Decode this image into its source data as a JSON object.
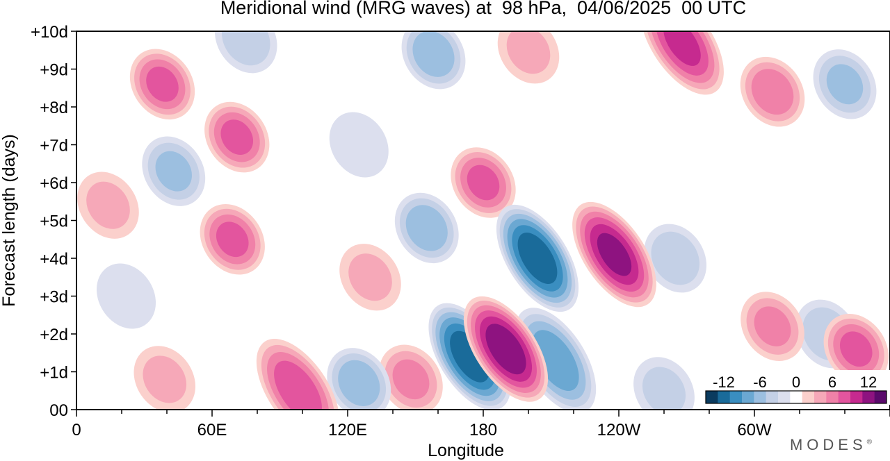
{
  "chart_data": {
    "type": "heatmap",
    "title": "Meridional wind (MRG waves) at  98 hPa,  04/06/2025  00 UTC",
    "xlabel": "Longitude",
    "ylabel": "Forecast length (days)",
    "x_ticks": [
      "0",
      "60E",
      "120E",
      "180",
      "120W",
      "60W"
    ],
    "x_tick_values_deg_east": [
      0,
      60,
      120,
      180,
      240,
      300
    ],
    "y_ticks": [
      "00",
      "+1d",
      "+2d",
      "+3d",
      "+4d",
      "+5d",
      "+6d",
      "+7d",
      "+8d",
      "+9d",
      "+10d"
    ],
    "y_tick_values_days": [
      0,
      1,
      2,
      3,
      4,
      5,
      6,
      7,
      8,
      9,
      10
    ],
    "xlim_deg_east": [
      0,
      360
    ],
    "ylim_days": [
      0,
      10
    ],
    "colorbar": {
      "labels": [
        "-12",
        "-6",
        "0",
        "6",
        "12"
      ],
      "label_values": [
        -12,
        -6,
        0,
        6,
        12
      ],
      "levels": [
        -14,
        -12,
        -10,
        -8,
        -6,
        -4,
        -2,
        2,
        4,
        6,
        8,
        10,
        12,
        14
      ],
      "colors": [
        "#0b3b5f",
        "#1a6b9a",
        "#3a8ec0",
        "#6ba8d2",
        "#9cbfe0",
        "#c4d0e6",
        "#dcdfee",
        "#ffffff",
        "#fbd0cc",
        "#f6a8b8",
        "#f081a8",
        "#e3559e",
        "#c62a8f",
        "#8e1380",
        "#5a0a6b"
      ]
    },
    "features": [
      {
        "sign": "negative",
        "lon": 260,
        "day": 0.5,
        "peak": -4
      },
      {
        "sign": "negative",
        "lon": 204,
        "day": 4.0,
        "peak": -13
      },
      {
        "sign": "negative",
        "lon": 212,
        "day": 1.3,
        "peak": -9
      },
      {
        "sign": "negative",
        "lon": 174,
        "day": 1.4,
        "peak": -13
      },
      {
        "sign": "negative",
        "lon": 125,
        "day": 0.7,
        "peak": -7
      },
      {
        "sign": "negative",
        "lon": 155,
        "day": 4.8,
        "peak": -7
      },
      {
        "sign": "negative",
        "lon": 158,
        "day": 9.4,
        "peak": -7
      },
      {
        "sign": "negative",
        "lon": 43,
        "day": 6.3,
        "peak": -6
      },
      {
        "sign": "negative",
        "lon": 75,
        "day": 9.8,
        "peak": -5
      },
      {
        "sign": "negative",
        "lon": 265,
        "day": 4.0,
        "peak": -5
      },
      {
        "sign": "negative",
        "lon": 340,
        "day": 8.6,
        "peak": -6
      },
      {
        "sign": "negative",
        "lon": 332,
        "day": 2.0,
        "peak": -5
      },
      {
        "sign": "negative",
        "lon": 125,
        "day": 7.0,
        "peak": -3
      },
      {
        "sign": "negative",
        "lon": 22,
        "day": 3.0,
        "peak": -3
      },
      {
        "sign": "positive",
        "lon": 190,
        "day": 1.6,
        "peak": 13
      },
      {
        "sign": "positive",
        "lon": 238,
        "day": 4.1,
        "peak": 12
      },
      {
        "sign": "positive",
        "lon": 180,
        "day": 6.0,
        "peak": 8
      },
      {
        "sign": "positive",
        "lon": 98,
        "day": 0.5,
        "peak": 9
      },
      {
        "sign": "positive",
        "lon": 148,
        "day": 0.8,
        "peak": 6
      },
      {
        "sign": "positive",
        "lon": 69,
        "day": 4.5,
        "peak": 8
      },
      {
        "sign": "positive",
        "lon": 71,
        "day": 7.2,
        "peak": 8
      },
      {
        "sign": "positive",
        "lon": 38,
        "day": 8.6,
        "peak": 8
      },
      {
        "sign": "positive",
        "lon": 268,
        "day": 9.7,
        "peak": 10
      },
      {
        "sign": "positive",
        "lon": 308,
        "day": 8.4,
        "peak": 7
      },
      {
        "sign": "positive",
        "lon": 345,
        "day": 1.6,
        "peak": 8
      },
      {
        "sign": "positive",
        "lon": 308,
        "day": 2.2,
        "peak": 6
      },
      {
        "sign": "positive",
        "lon": 200,
        "day": 9.5,
        "peak": 4
      },
      {
        "sign": "positive",
        "lon": 14,
        "day": 5.4,
        "peak": 4
      },
      {
        "sign": "positive",
        "lon": 130,
        "day": 3.5,
        "peak": 4
      },
      {
        "sign": "positive",
        "lon": 39,
        "day": 0.8,
        "peak": 4
      }
    ]
  },
  "brand": "MODES",
  "brand_mark": "®"
}
